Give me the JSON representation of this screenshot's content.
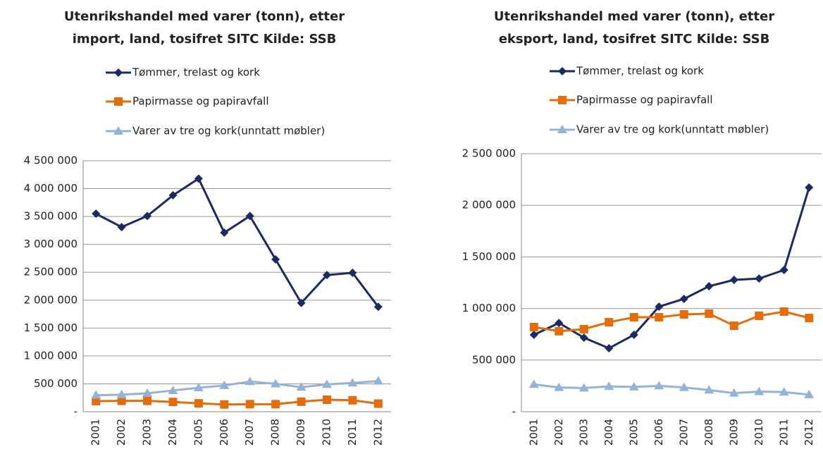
{
  "chart_data": [
    {
      "type": "line",
      "title": [
        "Utenrikshandel med varer (tonn), etter",
        "import, land, tosifret SITC Kilde: SSB"
      ],
      "categories": [
        "2001",
        "2002",
        "2003",
        "2004",
        "2005",
        "2006",
        "2007",
        "2008",
        "2009",
        "2010",
        "2011",
        "2012"
      ],
      "series": [
        {
          "name": "Tømmer, trelast og kork",
          "color": "#1b2a63",
          "marker": "diamond",
          "values": [
            3550000,
            3310000,
            3510000,
            3880000,
            4180000,
            3210000,
            3510000,
            2730000,
            1950000,
            2450000,
            2490000,
            1880000
          ]
        },
        {
          "name": "Papirmasse og papiravfall",
          "color": "#e46c0a",
          "marker": "square",
          "values": [
            190000,
            195000,
            195000,
            175000,
            150000,
            130000,
            135000,
            135000,
            180000,
            215000,
            205000,
            145000
          ]
        },
        {
          "name": "Varer av tre og kork(unntatt møbler)",
          "color": "#95b3d7",
          "marker": "triangle",
          "values": [
            295000,
            305000,
            330000,
            380000,
            430000,
            470000,
            540000,
            500000,
            440000,
            490000,
            515000,
            550000
          ]
        }
      ],
      "ylim": [
        0,
        4500000
      ],
      "yticks": [
        {
          "value": 0,
          "label": "-"
        },
        {
          "value": 500000,
          "label": "500 000"
        },
        {
          "value": 1000000,
          "label": "1 000 000"
        },
        {
          "value": 1500000,
          "label": "1 500 000"
        },
        {
          "value": 2000000,
          "label": "2 000 000"
        },
        {
          "value": 2500000,
          "label": "2 500 000"
        },
        {
          "value": 3000000,
          "label": "3 000 000"
        },
        {
          "value": 3500000,
          "label": "3 500 000"
        },
        {
          "value": 4000000,
          "label": "4 000 000"
        },
        {
          "value": 4500000,
          "label": "4 500 000"
        }
      ],
      "grid": true
    },
    {
      "type": "line",
      "title": [
        "Utenrikshandel med varer (tonn), etter",
        "eksport, land, tosifret SITC Kilde: SSB"
      ],
      "categories": [
        "2001",
        "2002",
        "2003",
        "2004",
        "2005",
        "2006",
        "2007",
        "2008",
        "2009",
        "2010",
        "2011",
        "2012"
      ],
      "series": [
        {
          "name": "Tømmer, trelast og kork",
          "color": "#1b2a63",
          "marker": "diamond",
          "values": [
            745000,
            860000,
            717000,
            615000,
            745000,
            1018000,
            1093000,
            1216000,
            1277000,
            1290000,
            1373000,
            2172000
          ]
        },
        {
          "name": "Papirmasse og papiravfall",
          "color": "#e46c0a",
          "marker": "square",
          "values": [
            820000,
            780000,
            800000,
            867000,
            915000,
            915000,
            943000,
            950000,
            833000,
            929000,
            970000,
            908000
          ]
        },
        {
          "name": "Varer av tre og kork(unntatt møbler)",
          "color": "#95b3d7",
          "marker": "triangle",
          "values": [
            265000,
            235000,
            230000,
            245000,
            240000,
            250000,
            235000,
            210000,
            180000,
            195000,
            190000,
            165000
          ]
        }
      ],
      "ylim": [
        0,
        2500000
      ],
      "yticks": [
        {
          "value": 0,
          "label": "-"
        },
        {
          "value": 500000,
          "label": "500 000"
        },
        {
          "value": 1000000,
          "label": "1 000 000"
        },
        {
          "value": 1500000,
          "label": "1 500 000"
        },
        {
          "value": 2000000,
          "label": "2 000 000"
        },
        {
          "value": 2500000,
          "label": "2 500 000"
        }
      ],
      "grid": true
    }
  ]
}
